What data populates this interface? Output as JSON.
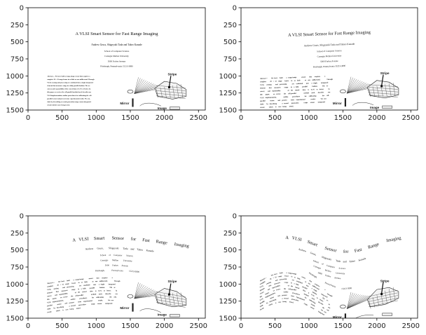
{
  "chart_data": [
    {
      "type": "image",
      "panel": "top-left",
      "warp": "none",
      "xlim": [
        0,
        2600
      ],
      "ylim": [
        1500,
        0
      ],
      "xticks": [
        0,
        500,
        1000,
        1500,
        2000,
        2500
      ],
      "yticks": [
        0,
        250,
        500,
        750,
        1000,
        1250,
        1500
      ]
    },
    {
      "type": "image",
      "panel": "top-right",
      "warp": "slight-rotation",
      "xlim": [
        0,
        2600
      ],
      "ylim": [
        1500,
        0
      ],
      "xticks": [
        0,
        500,
        1000,
        1500,
        2000,
        2500
      ],
      "yticks": [
        0,
        250,
        500,
        750,
        1000,
        1250,
        1500
      ]
    },
    {
      "type": "image",
      "panel": "bottom-left",
      "warp": "mild-wave",
      "xlim": [
        0,
        2600
      ],
      "ylim": [
        1500,
        0
      ],
      "xticks": [
        0,
        500,
        1000,
        1500,
        2000,
        2500
      ],
      "yticks": [
        0,
        250,
        500,
        750,
        1000,
        1250,
        1500
      ]
    },
    {
      "type": "image",
      "panel": "bottom-right",
      "warp": "strong-wave",
      "xlim": [
        0,
        2600
      ],
      "ylim": [
        1500,
        0
      ],
      "xticks": [
        0,
        500,
        1000,
        1500,
        2000,
        2500
      ],
      "yticks": [
        0,
        250,
        500,
        750,
        1000,
        1250,
        1500
      ]
    }
  ],
  "document": {
    "title": "A VLSI Smart Sensor for Fast Range Imaging",
    "authors": "Andrew Gruss, Shigeyuki Tada and Takeo Kanade",
    "address": [
      "School of Computer Science",
      "Carnegie Mellon University",
      "5000 Forbes Avenue",
      "Pittsburgh, Pennsylvania 15213-3890"
    ],
    "abstract": [
      "Abstract— We have built a range-image sensor that acquires a",
      "complete 28 × 32 range frame in as little as one millisecond. Through",
      "VLSI, sensing and processing are combined into a single integrated",
      "element that measures range in a fully parallel fashion. The ac-",
      "curacy and repeatability of the sensed data is 0.1% or better. In",
      "this paper, we review the cell-parallel method used, describe our",
      "VLSI implementation, outline procedures for calibrating the cell-",
      "parallel sensor and present some experimental results. We con-",
      "clude by describing a second generation range sensor integrated",
      "circuit which is now being tested."
    ],
    "figure_labels": {
      "stripe": "Stripe",
      "mirror": "Mirror",
      "image": "Image"
    }
  }
}
